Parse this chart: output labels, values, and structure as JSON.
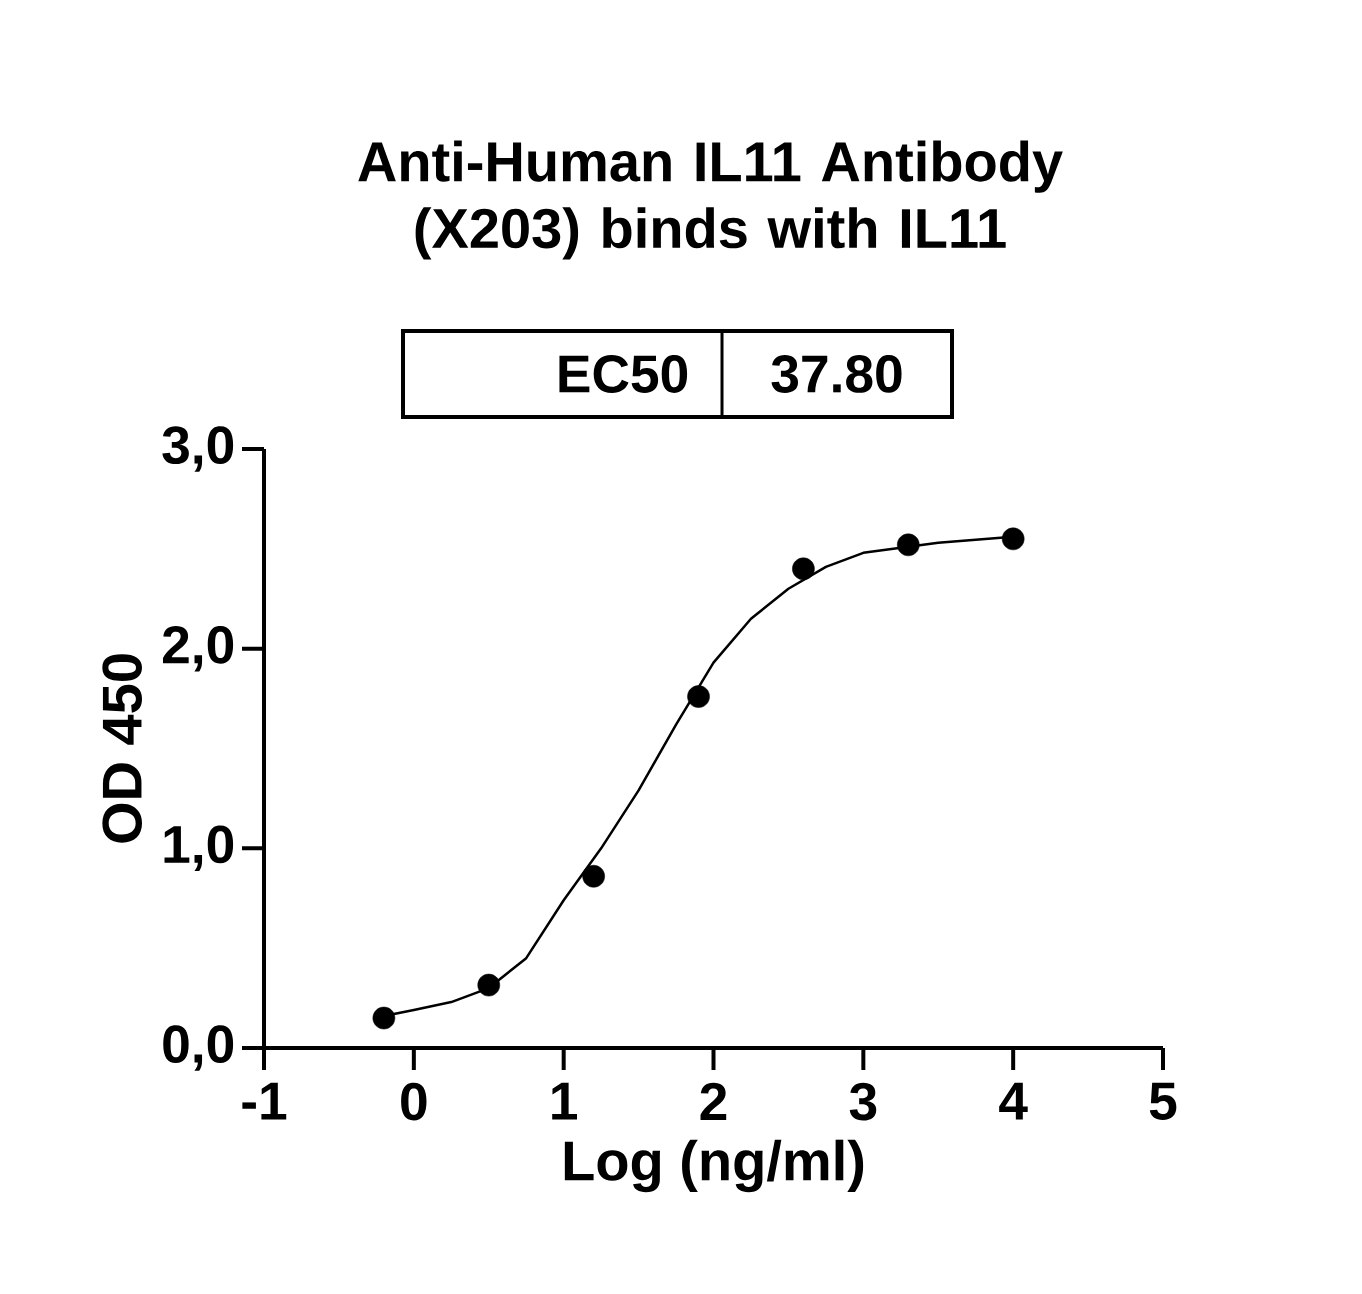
{
  "chart_data": {
    "type": "scatter",
    "title": "Anti-Human IL11 Antibody (X203) binds with IL11",
    "xlabel": "Log (ng/ml)",
    "ylabel": "OD 450",
    "annotations": [
      "EC50",
      "37.80"
    ],
    "xlim": [
      -1,
      5
    ],
    "ylim": [
      0,
      3
    ],
    "xticks": [
      -1,
      0,
      1,
      2,
      3,
      4,
      5
    ],
    "yticks": [
      {
        "value": 0,
        "label": "0,0"
      },
      {
        "value": 1,
        "label": "1,0"
      },
      {
        "value": 2,
        "label": "2,0"
      },
      {
        "value": 3,
        "label": "3,0"
      }
    ],
    "grid": false,
    "marker": "circle",
    "line_style": "solid",
    "series": [
      {
        "color": "#000000",
        "x": [
          -0.2,
          0.5,
          1.2,
          1.9,
          2.6,
          3.3,
          4.0
        ],
        "values": [
          0.15,
          0.315,
          0.86,
          1.76,
          2.4,
          2.52,
          2.55
        ]
      },
      {
        "type": "line",
        "marker": "none",
        "color": "#000000",
        "x": [
          -0.2,
          0.0,
          0.25,
          0.5,
          0.75,
          1.0,
          1.25,
          1.5,
          1.75,
          2.0,
          2.25,
          2.5,
          2.75,
          3.0,
          3.5,
          4.0
        ],
        "values": [
          0.16,
          0.19,
          0.23,
          0.3,
          0.45,
          0.74,
          1.0,
          1.29,
          1.62,
          1.93,
          2.15,
          2.3,
          2.41,
          2.48,
          2.53,
          2.56
        ]
      }
    ]
  }
}
